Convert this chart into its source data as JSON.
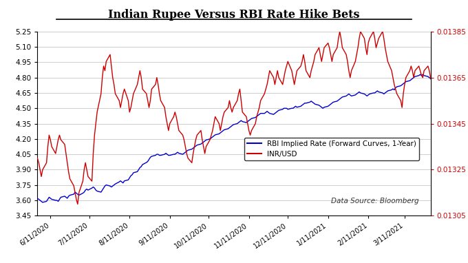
{
  "title": "Indian Rupee Versus RBI Rate Hike Bets",
  "legend_entries": [
    "RBI Implied Rate (Forward Curves, 1-Year)",
    "INR/USD"
  ],
  "annotation": "Data Source: Bloomberg",
  "blue_color": "#0000CC",
  "red_color": "#CC0000",
  "background_color": "#FFFFFF",
  "left_ylim": [
    3.45,
    5.25
  ],
  "right_ylim": [
    0.01305,
    0.01385
  ],
  "left_yticks": [
    3.45,
    3.6,
    3.75,
    3.9,
    4.05,
    4.2,
    4.35,
    4.5,
    4.65,
    4.8,
    4.95,
    5.1,
    5.25
  ],
  "right_yticks": [
    0.01305,
    0.01325,
    0.01345,
    0.01365,
    0.01385
  ],
  "xtick_dates": [
    "2020-06-11",
    "2020-07-11",
    "2020-08-11",
    "2020-09-11",
    "2020-10-11",
    "2020-11-11",
    "2020-12-11",
    "2021-01-11",
    "2021-02-11",
    "2021-03-11"
  ],
  "xtick_labels": [
    "6/11/2020",
    "7/11/2020",
    "8/11/2020",
    "9/11/2020",
    "10/11/2020",
    "11/11/2020",
    "12/11/2020",
    "1/11/2021",
    "2/11/2021",
    "3/11/2021"
  ],
  "rbi_rate": [
    3.62,
    3.61,
    3.6,
    3.59,
    3.58,
    3.59,
    3.61,
    3.63,
    3.62,
    3.61,
    3.6,
    3.6,
    3.59,
    3.61,
    3.63,
    3.64,
    3.63,
    3.62,
    3.64,
    3.65,
    3.66,
    3.68,
    3.67,
    3.66,
    3.65,
    3.67,
    3.68,
    3.7,
    3.71,
    3.7,
    3.72,
    3.73,
    3.72,
    3.7,
    3.69,
    3.68,
    3.7,
    3.72,
    3.74,
    3.75,
    3.74,
    3.73,
    3.74,
    3.75,
    3.76,
    3.78,
    3.79,
    3.78,
    3.77,
    3.79,
    3.8,
    3.82,
    3.84,
    3.85,
    3.87,
    3.88,
    3.9,
    3.92,
    3.93,
    3.95,
    3.97,
    3.98,
    4.0,
    4.02,
    4.03,
    4.04,
    4.05,
    4.05,
    4.04,
    4.04,
    4.05,
    4.06,
    4.05,
    4.04,
    4.04,
    4.05,
    4.05,
    4.06,
    4.07,
    4.06,
    4.05,
    4.06,
    4.07,
    4.08,
    4.09,
    4.1,
    4.11,
    4.12,
    4.13,
    4.14,
    4.15,
    4.16,
    4.17,
    4.18,
    4.19,
    4.2,
    4.21,
    4.22,
    4.23,
    4.24,
    4.25,
    4.26,
    4.27,
    4.28,
    4.29,
    4.3,
    4.31,
    4.32,
    4.33,
    4.34,
    4.35,
    4.36,
    4.37,
    4.38,
    4.37,
    4.36,
    4.37,
    4.38,
    4.39,
    4.4,
    4.41,
    4.42,
    4.43,
    4.44,
    4.45,
    4.45,
    4.46,
    4.47,
    4.46,
    4.45,
    4.44,
    4.45,
    4.46,
    4.47,
    4.48,
    4.49,
    4.5,
    4.5,
    4.5,
    4.49,
    4.5,
    4.5,
    4.51,
    4.52,
    4.51,
    4.52,
    4.53,
    4.54,
    4.55,
    4.55,
    4.56,
    4.57,
    4.56,
    4.55,
    4.54,
    4.53,
    4.52,
    4.51,
    4.5,
    4.51,
    4.52,
    4.53,
    4.54,
    4.55,
    4.56,
    4.57,
    4.58,
    4.59,
    4.6,
    4.61,
    4.62,
    4.63,
    4.64,
    4.63,
    4.62,
    4.63,
    4.64,
    4.65,
    4.66,
    4.65,
    4.64,
    4.63,
    4.62,
    4.63,
    4.64,
    4.65,
    4.65,
    4.66,
    4.67,
    4.66,
    4.65,
    4.64,
    4.65,
    4.66,
    4.67,
    4.68,
    4.69,
    4.68,
    4.7,
    4.71,
    4.72,
    4.73,
    4.74,
    4.75,
    4.76,
    4.77,
    4.78,
    4.79,
    4.8,
    4.81,
    4.82,
    4.83,
    4.82,
    4.83,
    4.82,
    4.81,
    4.8,
    4.79,
    4.8,
    4.81,
    4.8,
    4.79,
    4.78,
    4.77,
    4.76,
    4.77,
    4.78,
    4.77,
    4.76,
    4.77,
    4.78,
    4.77,
    4.78,
    4.79,
    4.78,
    4.77,
    4.78,
    4.79,
    4.8,
    4.79,
    4.78,
    4.79,
    4.8
  ],
  "inr_usd": [
    0.0133,
    0.01328,
    0.01325,
    0.01322,
    0.01325,
    0.01328,
    0.01335,
    0.0134,
    0.01338,
    0.01335,
    0.01332,
    0.01335,
    0.01338,
    0.0134,
    0.01338,
    0.01336,
    0.01332,
    0.01328,
    0.01324,
    0.01321,
    0.01318,
    0.01315,
    0.01312,
    0.0131,
    0.01315,
    0.0132,
    0.01325,
    0.01328,
    0.01325,
    0.01322,
    0.0132,
    0.01332,
    0.0134,
    0.01345,
    0.0135,
    0.01358,
    0.01365,
    0.0137,
    0.01368,
    0.01372,
    0.01375,
    0.0137,
    0.01365,
    0.01362,
    0.01358,
    0.01355,
    0.01352,
    0.01355,
    0.01358,
    0.0136,
    0.01355,
    0.0135,
    0.01352,
    0.01355,
    0.01358,
    0.01362,
    0.01365,
    0.01368,
    0.01365,
    0.0136,
    0.01358,
    0.01355,
    0.01352,
    0.01355,
    0.0136,
    0.01362,
    0.01365,
    0.01362,
    0.01358,
    0.01355,
    0.01352,
    0.01348,
    0.01345,
    0.01342,
    0.01345,
    0.01348,
    0.0135,
    0.01348,
    0.01345,
    0.01342,
    0.0134,
    0.01338,
    0.01335,
    0.01332,
    0.0133,
    0.01328,
    0.01332,
    0.01335,
    0.01338,
    0.0134,
    0.01342,
    0.01338,
    0.01335,
    0.01332,
    0.01335,
    0.01338,
    0.0134,
    0.01342,
    0.01345,
    0.01348,
    0.01345,
    0.01342,
    0.01345,
    0.01348,
    0.0135,
    0.01352,
    0.01355,
    0.01352,
    0.0135,
    0.01352,
    0.01355,
    0.01358,
    0.0136,
    0.01355,
    0.0135,
    0.01348,
    0.01345,
    0.01342,
    0.0134,
    0.01342,
    0.01345,
    0.01348,
    0.0135,
    0.01352,
    0.01355,
    0.01358,
    0.0136,
    0.01362,
    0.01365,
    0.01368,
    0.01365,
    0.01362,
    0.01365,
    0.01368,
    0.01365,
    0.01362,
    0.01365,
    0.01368,
    0.0137,
    0.01372,
    0.01368,
    0.01365,
    0.01362,
    0.01365,
    0.01368,
    0.0137,
    0.01372,
    0.01375,
    0.01372,
    0.01368,
    0.01365,
    0.01368,
    0.0137,
    0.01372,
    0.01375,
    0.01378,
    0.01375,
    0.01372,
    0.01375,
    0.01378,
    0.0138,
    0.01378,
    0.01375,
    0.01372,
    0.01375,
    0.01378,
    0.01382,
    0.01385,
    0.01382,
    0.01378,
    0.01375,
    0.01372,
    0.01368,
    0.01365,
    0.01368,
    0.01372,
    0.01375,
    0.01378,
    0.01382,
    0.01385,
    0.01382,
    0.01378,
    0.01375,
    0.0138,
    0.01382,
    0.01385,
    0.01382,
    0.01378,
    0.0138,
    0.01382,
    0.01385,
    0.01382,
    0.01378,
    0.01375,
    0.01372,
    0.01368,
    0.01365,
    0.01362,
    0.0136,
    0.01358,
    0.01355,
    0.01352,
    0.01358,
    0.01362,
    0.01365,
    0.01368,
    0.0137,
    0.01368,
    0.01365,
    0.01368,
    0.0137,
    0.01368,
    0.01366,
    0.01365,
    0.01368,
    0.0137,
    0.01368,
    0.01365,
    0.01363,
    0.01365,
    0.01366,
    0.01365,
    0.01364,
    0.01363,
    0.01365,
    0.01366,
    0.01365,
    0.01364,
    0.01363,
    0.01365,
    0.01366,
    0.01365
  ]
}
